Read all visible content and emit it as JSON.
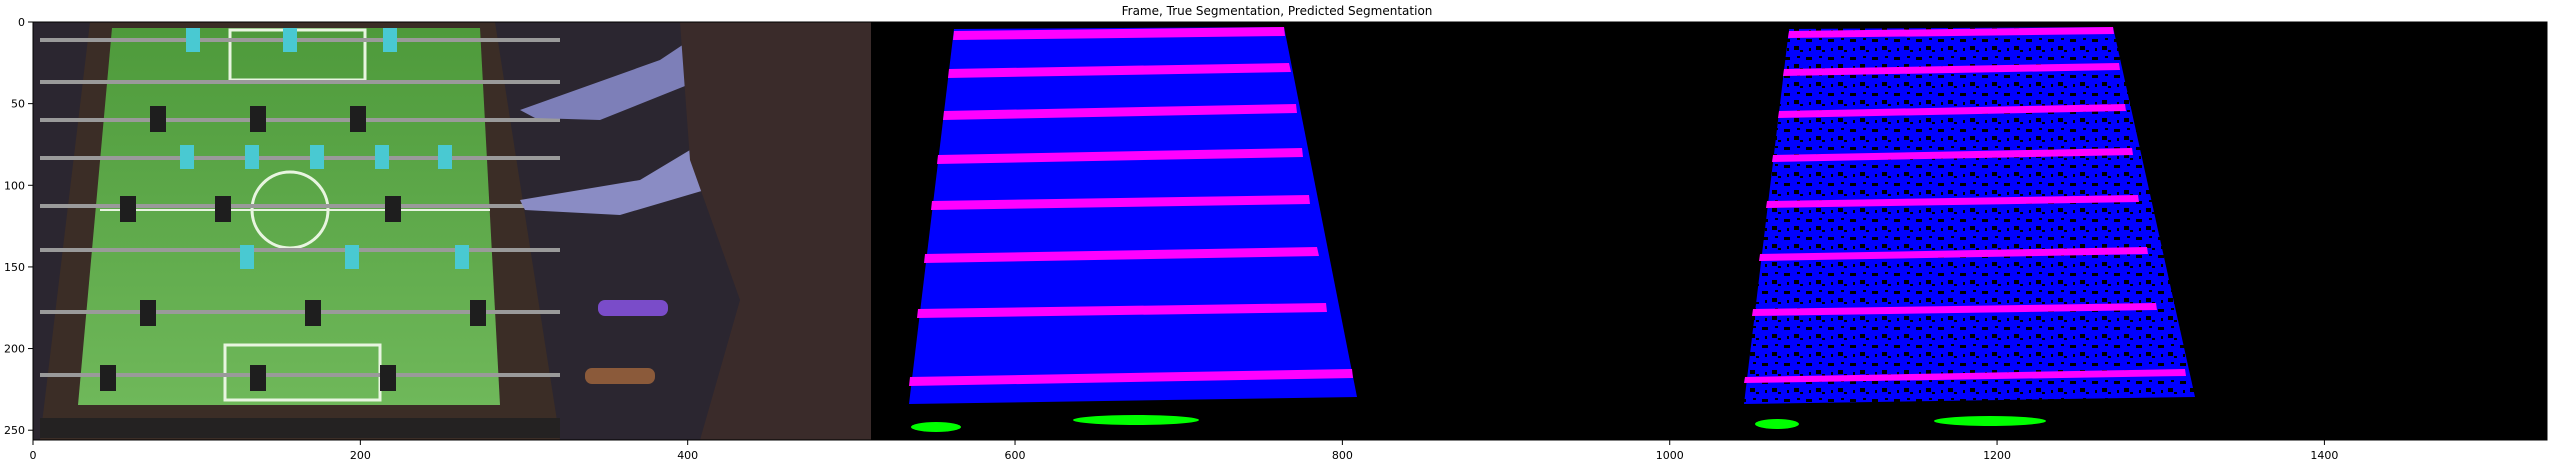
{
  "figure": {
    "title": "Frame, True Segmentation, Predicted Segmentation",
    "x_ticks": [
      "0",
      "200",
      "400",
      "600",
      "800",
      "1000",
      "1200",
      "1400"
    ],
    "x_tick_values": [
      0,
      200,
      400,
      600,
      800,
      1000,
      1200,
      1400
    ],
    "y_ticks": [
      "0",
      "50",
      "100",
      "150",
      "200",
      "250"
    ],
    "y_tick_values": [
      0,
      50,
      100,
      150,
      200,
      250
    ],
    "x_range": [
      0,
      1536
    ],
    "y_range": [
      0,
      256
    ],
    "panels": [
      "frame",
      "true-segmentation",
      "predicted-segmentation"
    ],
    "colors": {
      "table_surface": "#0000ff",
      "rods": "#ff00ff",
      "players": "#00ff00",
      "background": "#000000"
    }
  }
}
